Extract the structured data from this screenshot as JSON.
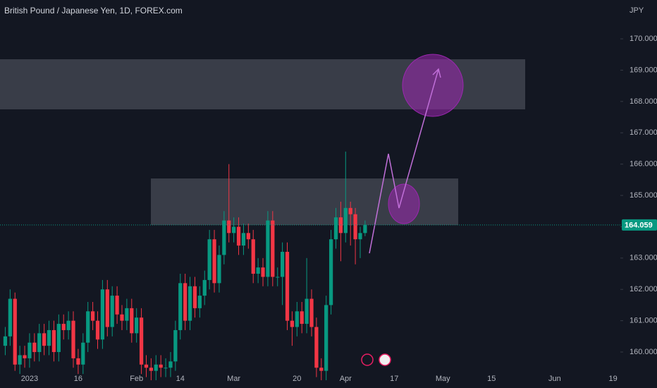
{
  "chart_data": {
    "type": "candlestick",
    "title": "British Pound / Japanese Yen, 1D, FOREX.com",
    "y_axis_unit": "JPY",
    "up_color": "#089981",
    "down_color": "#f23645",
    "categories": [
      null,
      null,
      null,
      null,
      null,
      "2023",
      null,
      null,
      null,
      null,
      null,
      null,
      null,
      null,
      null,
      "16",
      null,
      null,
      null,
      null,
      null,
      null,
      null,
      null,
      null,
      null,
      null,
      "Feb",
      null,
      null,
      null,
      null,
      null,
      null,
      null,
      null,
      "14",
      null,
      null,
      null,
      null,
      null,
      null,
      null,
      null,
      null,
      null,
      "Mar",
      null,
      null,
      null,
      null,
      null,
      null,
      null,
      null,
      null,
      null,
      null,
      null,
      "20",
      null,
      null,
      null,
      null,
      null,
      null,
      null,
      null,
      null,
      "Apr",
      null,
      null,
      null,
      null,
      null,
      null,
      null,
      null,
      null,
      "17",
      null,
      null,
      null,
      null,
      null,
      null,
      null,
      null,
      null,
      "May",
      null,
      null,
      null,
      null,
      null,
      null,
      null,
      null,
      null,
      "15",
      null,
      null,
      null,
      null,
      null,
      null,
      null,
      null,
      null,
      null,
      null,
      null,
      "Jun",
      null,
      null,
      null,
      null,
      null,
      null,
      null,
      null,
      null,
      null,
      null,
      "19",
      null
    ],
    "open": [
      160.2,
      160.5,
      161.7,
      159.6,
      159.9,
      159.8,
      160.3,
      160.0,
      160.6,
      160.2,
      160.7,
      160.0,
      160.9,
      160.7,
      161.0,
      159.8,
      159.6,
      160.3,
      161.3,
      161.0,
      160.4,
      162.0,
      160.8,
      161.8,
      161.2,
      161.0,
      161.4,
      160.6,
      161.1,
      159.6,
      159.5,
      159.4,
      159.6,
      159.5,
      159.5,
      159.7,
      160.7,
      162.2,
      161.0,
      162.1,
      161.4,
      161.8,
      162.3,
      163.6,
      162.2,
      163.1,
      164.2,
      163.8,
      164.0,
      163.4,
      163.8,
      163.6,
      162.5,
      162.7,
      162.4,
      164.2,
      162.4,
      162.4,
      163.2,
      161.0,
      160.8,
      161.3,
      160.9,
      161.7,
      160.8,
      159.5,
      159.4,
      161.5,
      163.6,
      164.3,
      163.8,
      164.6,
      164.4,
      163.6,
      163.8,
      null,
      null,
      null,
      null,
      null,
      null,
      null,
      null,
      null,
      null,
      null,
      null,
      null,
      null,
      null,
      null,
      null,
      null,
      null,
      null,
      null,
      null,
      null,
      null,
      null,
      null,
      null,
      null,
      null,
      null,
      null,
      null,
      null,
      null,
      null,
      null,
      null,
      null,
      null,
      null,
      null,
      null,
      null,
      null,
      null,
      null,
      null,
      null,
      null,
      null,
      null,
      null
    ],
    "high": [
      160.8,
      162.0,
      161.9,
      160.2,
      160.2,
      160.6,
      160.6,
      160.9,
      160.9,
      161.0,
      161.0,
      161.2,
      161.2,
      161.3,
      161.3,
      160.1,
      160.6,
      161.6,
      161.6,
      161.3,
      162.3,
      162.3,
      162.1,
      162.1,
      161.5,
      161.7,
      161.7,
      161.4,
      161.4,
      159.9,
      159.8,
      159.9,
      159.9,
      159.8,
      160.0,
      161.0,
      162.5,
      162.5,
      162.4,
      162.4,
      162.1,
      162.6,
      163.9,
      163.9,
      163.4,
      164.5,
      166.0,
      164.3,
      164.3,
      164.1,
      164.1,
      163.9,
      163.0,
      163.0,
      164.5,
      164.5,
      162.7,
      163.5,
      163.5,
      161.3,
      161.6,
      161.6,
      163.0,
      162.0,
      161.1,
      159.8,
      161.8,
      163.9,
      164.6,
      164.8,
      166.4,
      164.8,
      164.6,
      164.0,
      164.2,
      null,
      null,
      null,
      null,
      null,
      null,
      null,
      null,
      null,
      null,
      null,
      null,
      null,
      null,
      null,
      null,
      null,
      null,
      null,
      null,
      null,
      null,
      null,
      null,
      null,
      null,
      null,
      null,
      null,
      null,
      null,
      null,
      null,
      null,
      null,
      null,
      null,
      null,
      null,
      null,
      null,
      null,
      null,
      null,
      null,
      null,
      null,
      null,
      null,
      null,
      null,
      null
    ],
    "low": [
      159.9,
      160.2,
      159.4,
      159.3,
      159.5,
      159.5,
      159.7,
      159.7,
      159.9,
      159.9,
      159.7,
      159.7,
      160.4,
      160.4,
      159.5,
      159.3,
      159.3,
      160.0,
      160.7,
      160.1,
      160.1,
      160.5,
      160.5,
      160.9,
      160.7,
      160.7,
      160.3,
      160.3,
      159.3,
      159.2,
      159.1,
      159.1,
      159.2,
      159.2,
      159.2,
      159.4,
      160.4,
      160.7,
      160.7,
      161.1,
      161.1,
      161.5,
      162.0,
      161.9,
      161.9,
      162.8,
      163.5,
      163.5,
      163.1,
      163.1,
      163.3,
      162.2,
      162.2,
      162.1,
      162.1,
      162.1,
      162.1,
      161.5,
      160.7,
      160.2,
      160.5,
      160.6,
      160.6,
      160.5,
      159.2,
      159.1,
      159.1,
      161.2,
      163.3,
      162.9,
      163.5,
      163.4,
      162.8,
      163.0,
      163.7,
      null,
      null,
      null,
      null,
      null,
      null,
      null,
      null,
      null,
      null,
      null,
      null,
      null,
      null,
      null,
      null,
      null,
      null,
      null,
      null,
      null,
      null,
      null,
      null,
      null,
      null,
      null,
      null,
      null,
      null,
      null,
      null,
      null,
      null,
      null,
      null,
      null,
      null,
      null,
      null,
      null,
      null,
      null,
      null,
      null,
      null,
      null,
      null,
      null,
      null,
      null,
      null
    ],
    "close": [
      160.5,
      161.7,
      159.6,
      159.9,
      159.8,
      160.3,
      160.0,
      160.6,
      160.2,
      160.7,
      160.0,
      160.9,
      160.7,
      161.0,
      159.8,
      159.6,
      160.3,
      161.3,
      161.0,
      160.4,
      162.0,
      160.8,
      161.8,
      161.2,
      161.0,
      161.4,
      160.6,
      161.1,
      159.6,
      159.5,
      159.4,
      159.6,
      159.5,
      159.5,
      159.7,
      160.7,
      162.2,
      161.0,
      162.1,
      161.4,
      161.8,
      162.3,
      163.6,
      162.2,
      163.1,
      164.2,
      163.8,
      164.0,
      163.4,
      163.8,
      163.6,
      162.5,
      162.7,
      162.4,
      164.2,
      162.4,
      162.4,
      163.2,
      161.0,
      160.8,
      161.3,
      160.9,
      161.7,
      160.8,
      159.5,
      159.4,
      161.5,
      163.6,
      164.3,
      163.8,
      164.6,
      164.4,
      163.6,
      163.8,
      164.06,
      null,
      null,
      null,
      null,
      null,
      null,
      null,
      null,
      null,
      null,
      null,
      null,
      null,
      null,
      null,
      null,
      null,
      null,
      null,
      null,
      null,
      null,
      null,
      null,
      null,
      null,
      null,
      null,
      null,
      null,
      null,
      null,
      null,
      null,
      null,
      null,
      null,
      null,
      null,
      null,
      null,
      null,
      null,
      null,
      null,
      null,
      null,
      null,
      null,
      null,
      null,
      null
    ],
    "last_price": 164.059,
    "ylim": [
      159.46,
      171.24
    ],
    "yticks": [
      {
        "value": 160,
        "label": "160.000"
      },
      {
        "value": 161,
        "label": "161.000"
      },
      {
        "value": 162,
        "label": "162.000"
      },
      {
        "value": 163,
        "label": "163.000"
      },
      {
        "value": 164,
        "label": "164.000"
      },
      {
        "value": 165,
        "label": "165.000"
      },
      {
        "value": 166,
        "label": "166.000"
      },
      {
        "value": 167,
        "label": "167.000"
      },
      {
        "value": 168,
        "label": "168.000"
      },
      {
        "value": 169,
        "label": "169.000"
      },
      {
        "value": 170,
        "label": "170.000"
      }
    ]
  }
}
